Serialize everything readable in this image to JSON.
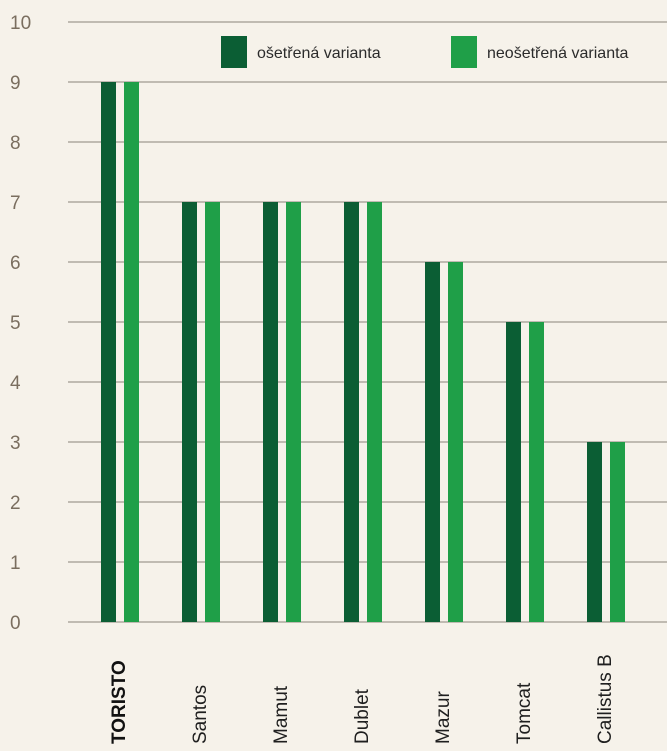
{
  "chart_data": {
    "type": "bar",
    "title": "",
    "xlabel": "",
    "ylabel": "",
    "ylim": [
      0,
      10
    ],
    "y_ticks": [
      "0",
      "1",
      "2",
      "3",
      "4",
      "5",
      "6",
      "7",
      "8",
      "9",
      "10"
    ],
    "grid": true,
    "legend_position": "top-right",
    "categories": [
      "TORISTO",
      "Santos",
      "Mamut",
      "Dublet",
      "Mazur",
      "Tomcat",
      "Callistus B"
    ],
    "highlight_category": "TORISTO",
    "series": [
      {
        "name": "ošetřená varianta",
        "color": "#0b5e34",
        "values": [
          9,
          7,
          7,
          7,
          6,
          5,
          3
        ]
      },
      {
        "name": "neošetřená varianta",
        "color": "#1f9f48",
        "values": [
          9,
          7,
          7,
          7,
          6,
          5,
          3
        ]
      }
    ]
  }
}
